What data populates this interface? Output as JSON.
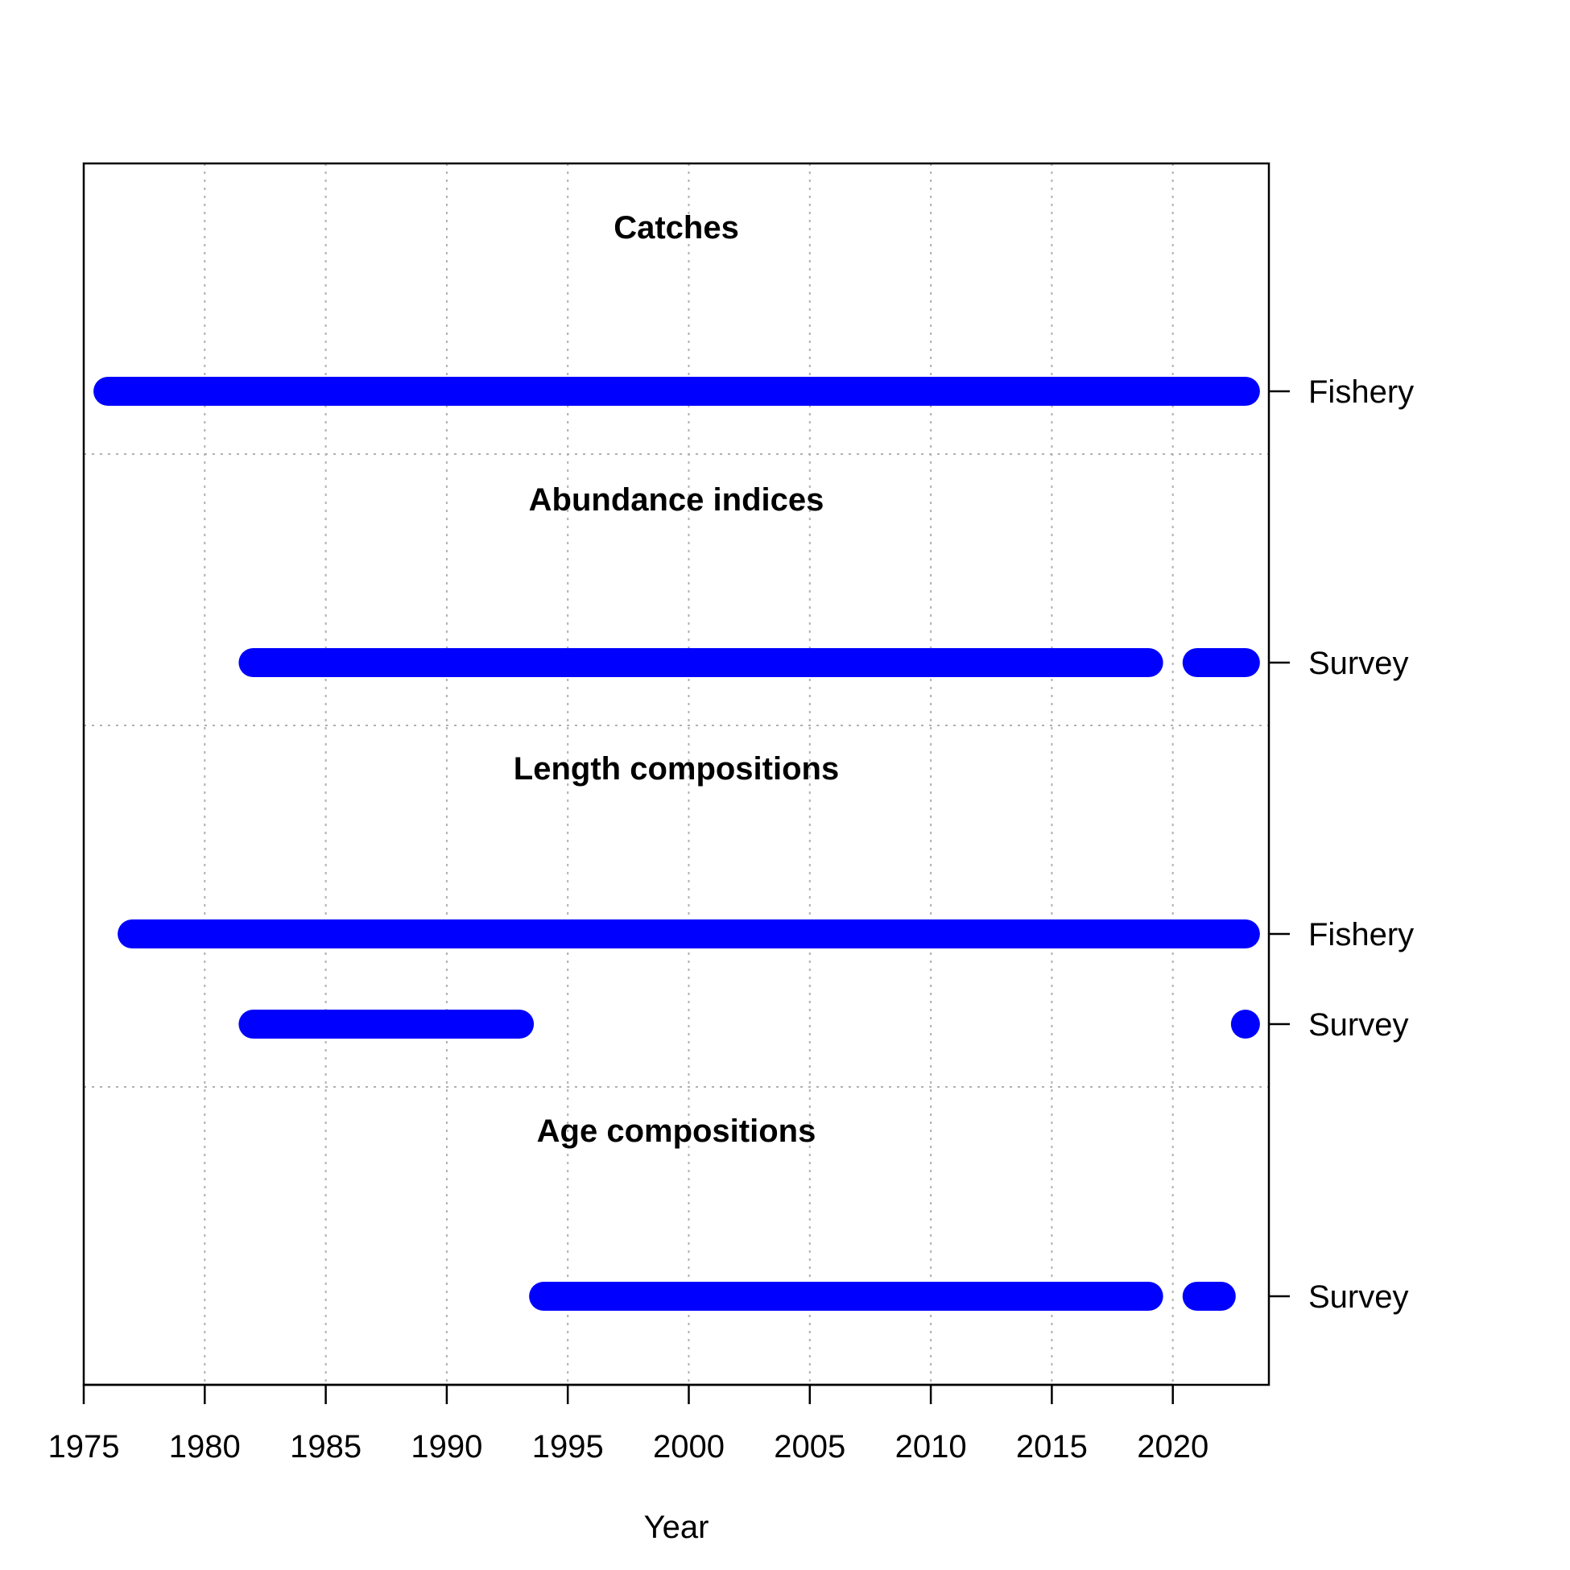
{
  "chart_data": {
    "type": "timeline",
    "xlabel": "Year",
    "xlim": [
      1975,
      2024
    ],
    "x_ticks": [
      "1975",
      "1980",
      "1985",
      "1990",
      "1995",
      "2000",
      "2005",
      "2010",
      "2015",
      "2020"
    ],
    "grid": true,
    "color": "#0000ff",
    "panels": [
      {
        "title": "Catches",
        "rows": [
          {
            "label": "Fishery",
            "segments": [
              [
                1976,
                2023
              ]
            ]
          }
        ]
      },
      {
        "title": "Abundance indices",
        "rows": [
          {
            "label": "Survey",
            "segments": [
              [
                1982,
                2019
              ],
              [
                2021,
                2023
              ]
            ]
          }
        ]
      },
      {
        "title": "Length compositions",
        "rows": [
          {
            "label": "Fishery",
            "segments": [
              [
                1977,
                2023
              ]
            ]
          },
          {
            "label": "Survey",
            "segments": [
              [
                1982,
                1993
              ],
              [
                2023,
                2023
              ]
            ]
          }
        ]
      },
      {
        "title": "Age compositions",
        "rows": [
          {
            "label": "Survey",
            "segments": [
              [
                1994,
                2019
              ],
              [
                2021,
                2022
              ]
            ]
          }
        ]
      }
    ]
  }
}
